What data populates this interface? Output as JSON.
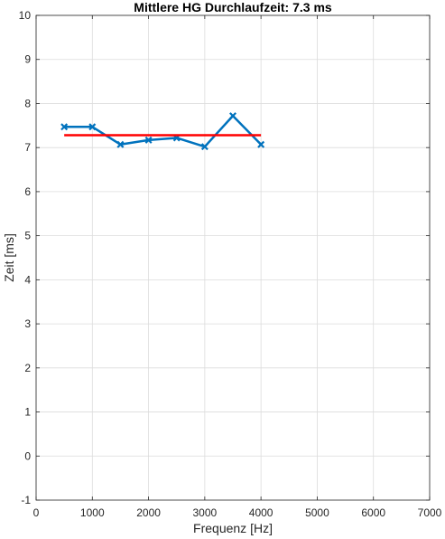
{
  "chart_data": {
    "type": "line",
    "title": "Mittlere HG Durchlaufzeit: 7.3 ms",
    "xlabel": "Frequenz [Hz]",
    "ylabel": "Zeit [ms]",
    "xlim": [
      0,
      7000
    ],
    "ylim": [
      -1,
      10
    ],
    "xticks": [
      0,
      1000,
      2000,
      3000,
      4000,
      5000,
      6000,
      7000
    ],
    "yticks": [
      -1,
      0,
      1,
      2,
      3,
      4,
      5,
      6,
      7,
      8,
      9,
      10
    ],
    "grid": true,
    "series": [
      {
        "x": [
          500,
          1000,
          1500,
          2000,
          2500,
          3000,
          3500,
          4000
        ],
        "y": [
          7.47,
          7.47,
          7.07,
          7.17,
          7.22,
          7.02,
          7.72,
          7.07
        ],
        "color": "#0072BD",
        "marker": "x"
      },
      {
        "x": [
          500,
          4000
        ],
        "y": [
          7.28,
          7.28
        ],
        "color": "#FF0000",
        "marker": "none"
      }
    ]
  }
}
